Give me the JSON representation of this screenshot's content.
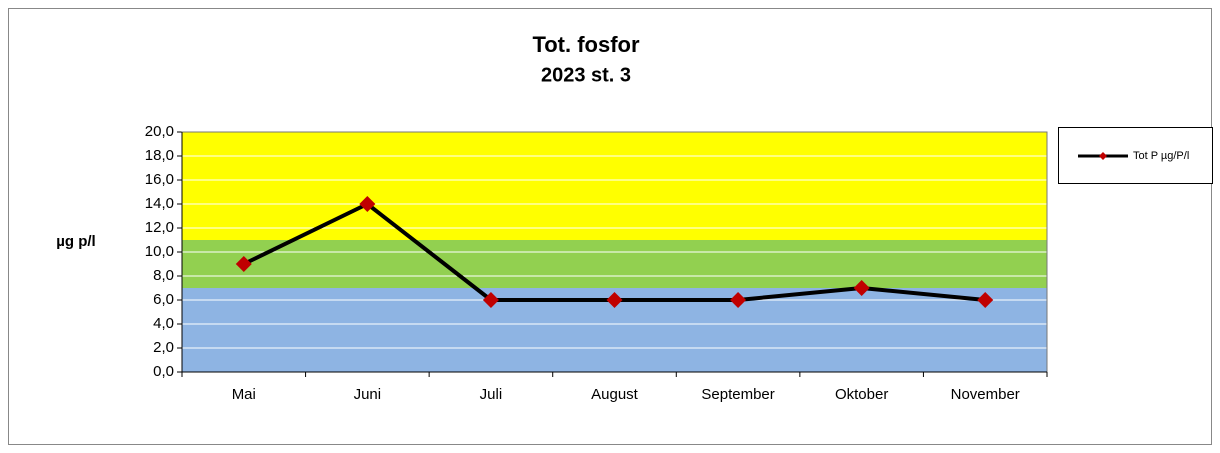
{
  "chart_data": {
    "type": "line",
    "title": "Tot. fosfor",
    "subtitle": "2023 st. 3",
    "y_label": "µg p/l",
    "categories": [
      "Mai",
      "Juni",
      "Juli",
      "August",
      "September",
      "Oktober",
      "November"
    ],
    "series": [
      {
        "name": "Tot P µg/P/l",
        "color": "#000000",
        "marker_color": "#c00000",
        "values": [
          9,
          14,
          6,
          6,
          6,
          7,
          6
        ]
      }
    ],
    "ylim": [
      0,
      20
    ],
    "yticks": [
      {
        "value": 0,
        "label": "0,0"
      },
      {
        "value": 2,
        "label": "2,0"
      },
      {
        "value": 4,
        "label": "4,0"
      },
      {
        "value": 6,
        "label": "6,0"
      },
      {
        "value": 8,
        "label": "8,0"
      },
      {
        "value": 10,
        "label": "10,0"
      },
      {
        "value": 12,
        "label": "12,0"
      },
      {
        "value": 14,
        "label": "14,0"
      },
      {
        "value": 16,
        "label": "16,0"
      },
      {
        "value": 18,
        "label": "18,0"
      },
      {
        "value": 20,
        "label": "20,0"
      }
    ],
    "bands": [
      {
        "from": 0,
        "to": 7,
        "color": "#8eb4e3"
      },
      {
        "from": 7,
        "to": 11,
        "color": "#92d050"
      },
      {
        "from": 11,
        "to": 20,
        "color": "#ffff00"
      }
    ],
    "grid": true,
    "legend": "right"
  }
}
